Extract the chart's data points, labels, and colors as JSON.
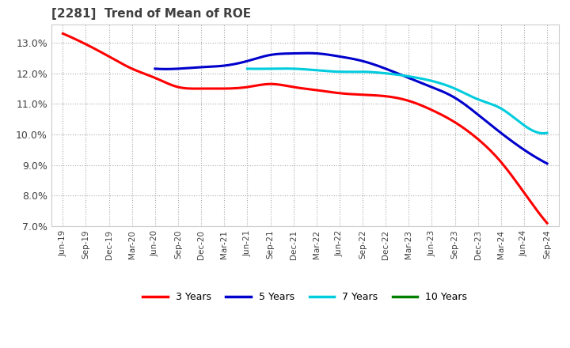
{
  "title": "[2281]  Trend of Mean of ROE",
  "title_color": "#404040",
  "background_color": "#ffffff",
  "plot_background": "#ffffff",
  "grid_color": "#aaaaaa",
  "ylim": [
    0.07,
    0.136
  ],
  "yticks": [
    0.07,
    0.08,
    0.09,
    0.1,
    0.11,
    0.12,
    0.13
  ],
  "xtick_labels": [
    "Jun-19",
    "Sep-19",
    "Dec-19",
    "Mar-20",
    "Jun-20",
    "Sep-20",
    "Dec-20",
    "Mar-21",
    "Jun-21",
    "Sep-21",
    "Dec-21",
    "Mar-22",
    "Jun-22",
    "Sep-22",
    "Dec-22",
    "Mar-23",
    "Jun-23",
    "Sep-23",
    "Dec-23",
    "Mar-24",
    "Jun-24",
    "Sep-24"
  ],
  "series": {
    "3 Years": {
      "color": "#ff0000",
      "data": [
        0.133,
        0.1295,
        0.1255,
        0.1215,
        0.1185,
        0.1155,
        0.115,
        0.115,
        0.1155,
        0.1165,
        0.1155,
        0.1145,
        0.1135,
        0.113,
        0.1125,
        0.111,
        0.108,
        0.104,
        0.0985,
        0.091,
        0.081,
        0.071
      ]
    },
    "5 Years": {
      "color": "#0000cc",
      "data": [
        null,
        null,
        null,
        null,
        0.1215,
        0.1215,
        0.122,
        0.1225,
        0.124,
        0.126,
        0.1265,
        0.1265,
        0.1255,
        0.124,
        0.1215,
        0.1185,
        0.1155,
        0.112,
        0.1065,
        0.1005,
        0.095,
        0.0905
      ]
    },
    "7 Years": {
      "color": "#00ccdd",
      "data": [
        null,
        null,
        null,
        null,
        null,
        null,
        null,
        null,
        0.1215,
        0.1215,
        0.1215,
        0.121,
        0.1205,
        0.1205,
        0.12,
        0.119,
        0.1175,
        0.115,
        0.1115,
        0.1085,
        0.103,
        0.1005
      ]
    },
    "10 Years": {
      "color": "#008000",
      "data": [
        null,
        null,
        null,
        null,
        null,
        null,
        null,
        null,
        null,
        null,
        null,
        null,
        null,
        null,
        null,
        null,
        null,
        null,
        null,
        null,
        null,
        null
      ]
    }
  },
  "legend_entries": [
    "3 Years",
    "5 Years",
    "7 Years",
    "10 Years"
  ],
  "legend_colors": [
    "#ff0000",
    "#0000cc",
    "#00ccdd",
    "#008000"
  ],
  "linewidth": 2.2
}
